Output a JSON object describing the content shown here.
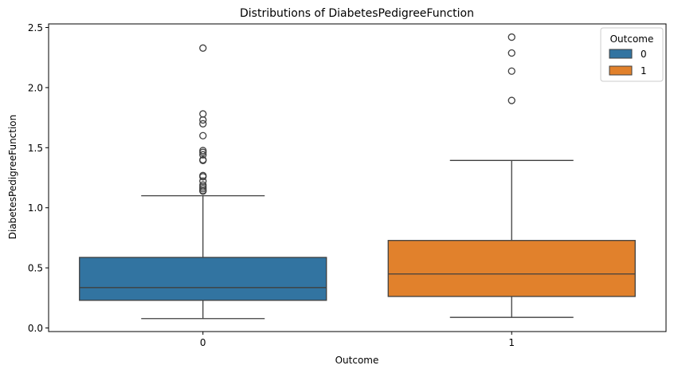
{
  "chart_data": {
    "type": "box",
    "title": "Distributions of DiabetesPedigreeFunction",
    "xlabel": "Outcome",
    "ylabel": "DiabetesPedigreeFunction",
    "categories": [
      "0",
      "1"
    ],
    "ylim": [
      -0.03,
      2.53
    ],
    "yticks": [
      0.0,
      0.5,
      1.0,
      1.5,
      2.0,
      2.5
    ],
    "ytick_labels": [
      "0.0",
      "0.5",
      "1.0",
      "1.5",
      "2.0",
      "2.5"
    ],
    "grid": false,
    "legend": {
      "title": "Outcome",
      "placement": "top-right",
      "entries": [
        "0",
        "1"
      ]
    },
    "colors": {
      "0": "#3274a1",
      "1": "#e1812c",
      "line": "#3f3f3f"
    },
    "series": [
      {
        "name": "0",
        "whisker_low": 0.078,
        "q1": 0.23,
        "median": 0.336,
        "q3": 0.587,
        "whisker_high": 1.1,
        "outliers": [
          2.329,
          1.781,
          1.731,
          1.699,
          1.6,
          1.476,
          1.461,
          1.441,
          1.4,
          1.394,
          1.268,
          1.258,
          1.222,
          1.189,
          1.174,
          1.159,
          1.144,
          1.138
        ]
      },
      {
        "name": "1",
        "whisker_low": 0.088,
        "q1": 0.262,
        "median": 0.449,
        "q3": 0.728,
        "whisker_high": 1.394,
        "outliers": [
          2.42,
          2.288,
          2.137,
          1.893
        ]
      }
    ]
  }
}
